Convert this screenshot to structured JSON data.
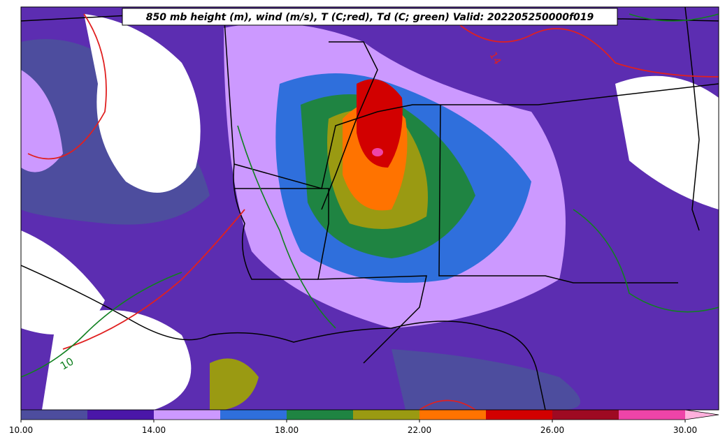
{
  "title": "850 mb height (m), wind (m/s), T (C;red), Td (C; green) Valid: 202205250000f019",
  "contour_labels": [
    "14",
    "10"
  ],
  "colorbar": {
    "bounds": [
      10,
      12,
      14,
      16,
      18,
      20,
      22,
      24,
      26,
      28,
      30
    ],
    "colors": [
      "#4d4d9e",
      "#4a16a8",
      "#cc99ff",
      "#2f6fdc",
      "#1f8442",
      "#9a9a12",
      "#ff7300",
      "#d20000",
      "#9e0a22",
      "#ee44a8"
    ],
    "extend_color": "#ffb0dc",
    "ticks": [
      {
        "value": 10,
        "label": "10.00"
      },
      {
        "value": 14,
        "label": "14.00"
      },
      {
        "value": 18,
        "label": "18.00"
      },
      {
        "value": 22,
        "label": "22.00"
      },
      {
        "value": 26,
        "label": "26.00"
      },
      {
        "value": 30,
        "label": "30.00"
      }
    ]
  }
}
